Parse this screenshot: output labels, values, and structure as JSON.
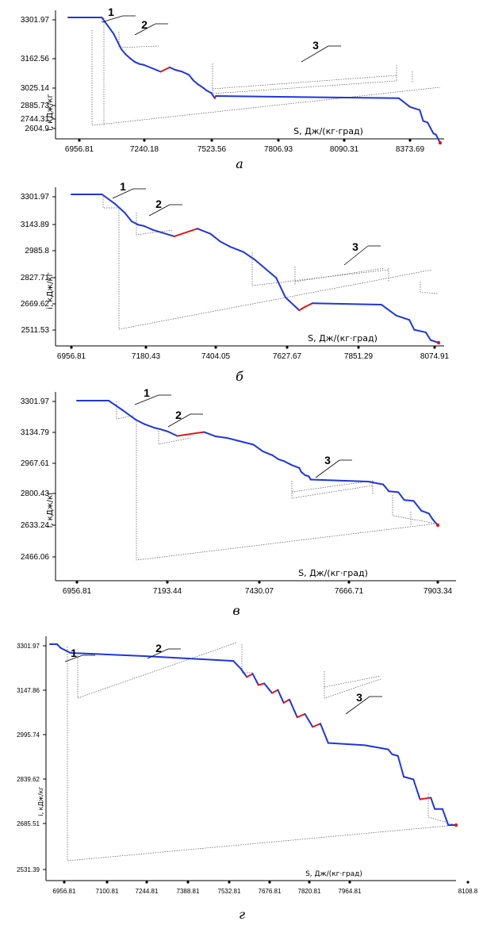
{
  "colors": {
    "cooling": "#1f35e0",
    "heating": "#e01818",
    "helper": "#555555",
    "axis": "#000000"
  },
  "chart_data": [
    {
      "type": "line",
      "caption": "а",
      "xlabel": "S, Дж/(кг·град)",
      "ylabel": "i, кДж/кг",
      "xticks": [
        "6956.81",
        "7240.18",
        "7523.56",
        "7806.93",
        "8090.31",
        "8373.69"
      ],
      "yticks": [
        "3301.97",
        "3162.56",
        "3025.14",
        "2885.73",
        "2744.31",
        "2604.9"
      ],
      "annotations": [
        "1",
        "2",
        "3"
      ],
      "series": [
        {
          "values": [
            [
              6956.81,
              3301.97
            ],
            [
              7085,
              3301.97
            ],
            [
              7130,
              3250
            ],
            [
              7160,
              3200
            ],
            [
              7178,
              3182
            ],
            [
              7195,
              3170
            ],
            [
              7210,
              3160
            ],
            [
              7228,
              3153
            ],
            [
              7245,
              3150
            ],
            [
              7310,
              3128
            ],
            [
              7345,
              3142
            ],
            [
              7362,
              3135
            ],
            [
              7392,
              3128
            ],
            [
              7418,
              3118
            ],
            [
              7435,
              3100
            ],
            [
              7452,
              3088
            ],
            [
              7470,
              3078
            ],
            [
              7485,
              3068
            ],
            [
              7503,
              3060
            ],
            [
              7517,
              3043
            ],
            [
              7521,
              3050
            ],
            [
              8220,
              3043
            ],
            [
              8263,
              3015
            ],
            [
              8300,
              3005
            ],
            [
              8313,
              2970
            ],
            [
              8330,
              2965
            ],
            [
              8352,
              2930
            ],
            [
              8362,
              2926
            ],
            [
              8378,
              2900
            ]
          ]
        }
      ]
    },
    {
      "type": "line",
      "caption": "б",
      "xlabel": "S, Дж/(кг·град)",
      "ylabel": "i, кДж/кг",
      "xticks": [
        "6956.81",
        "7180.43",
        "7404.05",
        "7627.67",
        "7851.29",
        "8074.91"
      ],
      "yticks": [
        "3301.97",
        "3143.89",
        "2985.8",
        "2827.71",
        "2669.62",
        "2511.53"
      ],
      "annotations": [
        "1",
        "2",
        "3"
      ],
      "series": [
        {
          "values": [
            [
              6956.81,
              3301.97
            ],
            [
              7050,
              3301.97
            ],
            [
              7090,
              3265
            ],
            [
              7120,
              3230
            ],
            [
              7140,
              3198
            ],
            [
              7160,
              3185
            ],
            [
              7178,
              3180
            ],
            [
              7205,
              3165
            ],
            [
              7270,
              3140
            ],
            [
              7340,
              3170
            ],
            [
              7380,
              3150
            ],
            [
              7410,
              3120
            ],
            [
              7440,
              3100
            ],
            [
              7480,
              3080
            ],
            [
              7515,
              3050
            ],
            [
              7580,
              2980
            ],
            [
              7608,
              2905
            ],
            [
              7650,
              2855
            ],
            [
              7670,
              2870
            ],
            [
              7690,
              2882
            ],
            [
              7900,
              2877
            ],
            [
              7945,
              2835
            ],
            [
              7985,
              2818
            ],
            [
              8000,
              2780
            ],
            [
              8035,
              2770
            ],
            [
              8050,
              2740
            ],
            [
              8074,
              2730
            ]
          ]
        }
      ]
    },
    {
      "type": "line",
      "caption": "в",
      "xlabel": "S, Дж/(кг·град)",
      "ylabel": "i, кДж/кг",
      "xticks": [
        "6956.81",
        "7193.44",
        "7430.07",
        "7666.71",
        "7903.34"
      ],
      "yticks": [
        "3301.97",
        "3134.79",
        "2967.61",
        "2800.43",
        "2633.24",
        "2466.06"
      ],
      "annotations": [
        "1",
        "2",
        "3"
      ],
      "series": [
        {
          "values": [
            [
              6956.81,
              3301.97
            ],
            [
              7040,
              3301.97
            ],
            [
              7075,
              3255
            ],
            [
              7110,
              3205
            ],
            [
              7135,
              3180
            ],
            [
              7160,
              3162
            ],
            [
              7175,
              3155
            ],
            [
              7195,
              3143
            ],
            [
              7220,
              3120
            ],
            [
              7290,
              3140
            ],
            [
              7320,
              3118
            ],
            [
              7350,
              3110
            ],
            [
              7380,
              3095
            ],
            [
              7420,
              3075
            ],
            [
              7445,
              3040
            ],
            [
              7470,
              3020
            ],
            [
              7485,
              3000
            ],
            [
              7500,
              2990
            ],
            [
              7520,
              2970
            ],
            [
              7540,
              2955
            ],
            [
              7545,
              2935
            ],
            [
              7555,
              2918
            ],
            [
              7565,
              2912
            ],
            [
              7570,
              2895
            ],
            [
              7720,
              2885
            ],
            [
              7760,
              2870
            ],
            [
              7775,
              2835
            ],
            [
              7800,
              2830
            ],
            [
              7815,
              2790
            ],
            [
              7840,
              2785
            ],
            [
              7860,
              2735
            ],
            [
              7880,
              2720
            ],
            [
              7890,
              2690
            ],
            [
              7903.34,
              2660
            ]
          ]
        }
      ]
    },
    {
      "type": "line",
      "caption": "г",
      "xlabel": "S, Дж/(кг·град)",
      "ylabel": "i, кДж/кг",
      "xticks": [
        "6956.81",
        "7100.81",
        "7244.81",
        "7388.81",
        "7532.81",
        "7676.81",
        "7820.81",
        "7964.81",
        "8108.8"
      ],
      "yticks": [
        "3301.97",
        "3147.86",
        "2995.74",
        "2839.62",
        "2685.51",
        "2531.39"
      ],
      "annotations": [
        "1",
        "2",
        "3"
      ],
      "series": [
        {
          "values": [
            [
              6956.81,
              3301.97
            ],
            [
              6975,
              3301.97
            ],
            [
              6985,
              3290
            ],
            [
              6998,
              3282
            ],
            [
              7010,
              3275
            ],
            [
              7200,
              3265
            ],
            [
              7430,
              3250
            ],
            [
              7450,
              3225
            ],
            [
              7465,
              3200
            ],
            [
              7480,
              3210
            ],
            [
              7495,
              3175
            ],
            [
              7510,
              3180
            ],
            [
              7530,
              3150
            ],
            [
              7545,
              3160
            ],
            [
              7560,
              3120
            ],
            [
              7575,
              3130
            ],
            [
              7595,
              3075
            ],
            [
              7615,
              3085
            ],
            [
              7635,
              3045
            ],
            [
              7655,
              3055
            ],
            [
              7675,
              2995
            ],
            [
              7770,
              2988
            ],
            [
              7830,
              2975
            ],
            [
              7840,
              2960
            ],
            [
              7855,
              2955
            ],
            [
              7870,
              2890
            ],
            [
              7895,
              2882
            ],
            [
              7912,
              2820
            ],
            [
              7940,
              2825
            ],
            [
              7950,
              2790
            ],
            [
              7970,
              2790
            ],
            [
              7985,
              2740
            ],
            [
              8005,
              2740
            ]
          ]
        }
      ]
    }
  ]
}
